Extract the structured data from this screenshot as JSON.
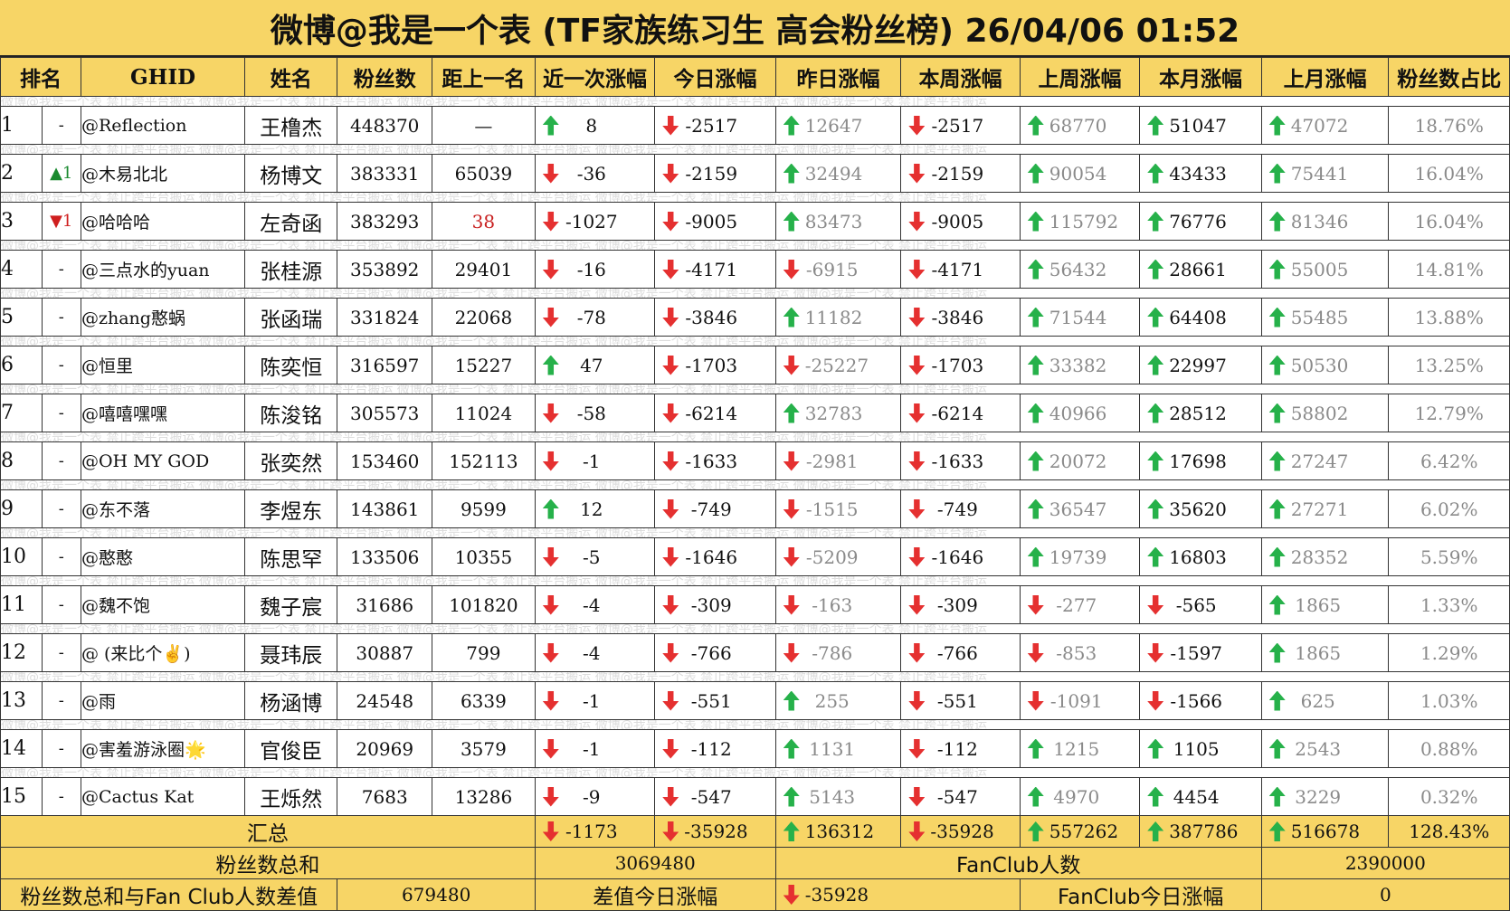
{
  "title": "微博@我是一个表 (TF家族练习生 高会粉丝榜)  26/04/06 01:52",
  "headers": [
    "排名",
    "GHID",
    "姓名",
    "粉丝数",
    "距上一名",
    "近一次涨幅",
    "今日涨幅",
    "昨日涨幅",
    "本周涨幅",
    "上周涨幅",
    "本月涨幅",
    "上月涨幅",
    "粉丝数占比"
  ],
  "watermark": "微博@我是一个表    禁止跨平台搬运    微博@我是一个表    禁止跨平台搬运    微博@我是一个表    禁止跨平台搬运    微博@我是一个表    禁止跨平台搬运    微博@我是一个表    禁止跨平台搬运",
  "colors": {
    "header_bg": "#f7d566",
    "up": "#26b14a",
    "down": "#e53030",
    "gap_highlight": "#c82020"
  },
  "rows": [
    {
      "rank": "1",
      "move": "-",
      "move_dir": "none",
      "ghid": "@Reflection",
      "name": "王橹杰",
      "fans": "448370",
      "gap": "—",
      "last": "8",
      "last_dir": "up",
      "today": "-2517",
      "today_dir": "down",
      "yesterday": "12647",
      "yesterday_dir": "up",
      "week": "-2517",
      "week_dir": "down",
      "lastweek": "68770",
      "lastweek_dir": "up",
      "month": "51047",
      "month_dir": "up",
      "lastmonth": "47072",
      "lastmonth_dir": "up",
      "pct": "18.76%"
    },
    {
      "rank": "2",
      "move": "▲1",
      "move_dir": "up",
      "ghid": "@木易北北",
      "name": "杨博文",
      "fans": "383331",
      "gap": "65039",
      "last": "-36",
      "last_dir": "down",
      "today": "-2159",
      "today_dir": "down",
      "yesterday": "32494",
      "yesterday_dir": "up",
      "week": "-2159",
      "week_dir": "down",
      "lastweek": "90054",
      "lastweek_dir": "up",
      "month": "43433",
      "month_dir": "up",
      "lastmonth": "75441",
      "lastmonth_dir": "up",
      "pct": "16.04%"
    },
    {
      "rank": "3",
      "move": "▼1",
      "move_dir": "down",
      "ghid": "@哈哈哈",
      "name": "左奇函",
      "fans": "383293",
      "gap": "38",
      "gap_red": true,
      "last": "-1027",
      "last_dir": "down",
      "today": "-9005",
      "today_dir": "down",
      "yesterday": "83473",
      "yesterday_dir": "up",
      "week": "-9005",
      "week_dir": "down",
      "lastweek": "115792",
      "lastweek_dir": "up",
      "month": "76776",
      "month_dir": "up",
      "lastmonth": "81346",
      "lastmonth_dir": "up",
      "pct": "16.04%"
    },
    {
      "rank": "4",
      "move": "-",
      "move_dir": "none",
      "ghid": "@三点水的yuan",
      "name": "张桂源",
      "fans": "353892",
      "gap": "29401",
      "last": "-16",
      "last_dir": "down",
      "today": "-4171",
      "today_dir": "down",
      "yesterday": "-6915",
      "yesterday_dir": "down",
      "week": "-4171",
      "week_dir": "down",
      "lastweek": "56432",
      "lastweek_dir": "up",
      "month": "28661",
      "month_dir": "up",
      "lastmonth": "55005",
      "lastmonth_dir": "up",
      "pct": "14.81%"
    },
    {
      "rank": "5",
      "move": "-",
      "move_dir": "none",
      "ghid": "@zhang憨蜗",
      "name": "张函瑞",
      "fans": "331824",
      "gap": "22068",
      "last": "-78",
      "last_dir": "down",
      "today": "-3846",
      "today_dir": "down",
      "yesterday": "11182",
      "yesterday_dir": "up",
      "week": "-3846",
      "week_dir": "down",
      "lastweek": "71544",
      "lastweek_dir": "up",
      "month": "64408",
      "month_dir": "up",
      "lastmonth": "55485",
      "lastmonth_dir": "up",
      "pct": "13.88%"
    },
    {
      "rank": "6",
      "move": "-",
      "move_dir": "none",
      "ghid": "@恒里",
      "name": "陈奕恒",
      "fans": "316597",
      "gap": "15227",
      "last": "47",
      "last_dir": "up",
      "today": "-1703",
      "today_dir": "down",
      "yesterday": "-25227",
      "yesterday_dir": "down",
      "week": "-1703",
      "week_dir": "down",
      "lastweek": "33382",
      "lastweek_dir": "up",
      "month": "22997",
      "month_dir": "up",
      "lastmonth": "50530",
      "lastmonth_dir": "up",
      "pct": "13.25%"
    },
    {
      "rank": "7",
      "move": "-",
      "move_dir": "none",
      "ghid": "@嘻嘻嘿嘿",
      "name": "陈浚铭",
      "fans": "305573",
      "gap": "11024",
      "last": "-58",
      "last_dir": "down",
      "today": "-6214",
      "today_dir": "down",
      "yesterday": "32783",
      "yesterday_dir": "up",
      "week": "-6214",
      "week_dir": "down",
      "lastweek": "40966",
      "lastweek_dir": "up",
      "month": "28512",
      "month_dir": "up",
      "lastmonth": "58802",
      "lastmonth_dir": "up",
      "pct": "12.79%"
    },
    {
      "rank": "8",
      "move": "-",
      "move_dir": "none",
      "ghid": "@OH MY GOD",
      "name": "张奕然",
      "fans": "153460",
      "gap": "152113",
      "last": "-1",
      "last_dir": "down",
      "today": "-1633",
      "today_dir": "down",
      "yesterday": "-2981",
      "yesterday_dir": "down",
      "week": "-1633",
      "week_dir": "down",
      "lastweek": "20072",
      "lastweek_dir": "up",
      "month": "17698",
      "month_dir": "up",
      "lastmonth": "27247",
      "lastmonth_dir": "up",
      "pct": "6.42%"
    },
    {
      "rank": "9",
      "move": "-",
      "move_dir": "none",
      "ghid": "@东不落",
      "name": "李煜东",
      "fans": "143861",
      "gap": "9599",
      "last": "12",
      "last_dir": "up",
      "today": "-749",
      "today_dir": "down",
      "yesterday": "-1515",
      "yesterday_dir": "down",
      "week": "-749",
      "week_dir": "down",
      "lastweek": "36547",
      "lastweek_dir": "up",
      "month": "35620",
      "month_dir": "up",
      "lastmonth": "27271",
      "lastmonth_dir": "up",
      "pct": "6.02%"
    },
    {
      "rank": "10",
      "move": "-",
      "move_dir": "none",
      "ghid": "@憨憨",
      "name": "陈思罕",
      "fans": "133506",
      "gap": "10355",
      "last": "-5",
      "last_dir": "down",
      "today": "-1646",
      "today_dir": "down",
      "yesterday": "-5209",
      "yesterday_dir": "down",
      "week": "-1646",
      "week_dir": "down",
      "lastweek": "19739",
      "lastweek_dir": "up",
      "month": "16803",
      "month_dir": "up",
      "lastmonth": "28352",
      "lastmonth_dir": "up",
      "pct": "5.59%"
    },
    {
      "rank": "11",
      "move": "-",
      "move_dir": "none",
      "ghid": "@魏不饱",
      "name": "魏子宸",
      "fans": "31686",
      "gap": "101820",
      "last": "-4",
      "last_dir": "down",
      "today": "-309",
      "today_dir": "down",
      "yesterday": "-163",
      "yesterday_dir": "down",
      "week": "-309",
      "week_dir": "down",
      "lastweek": "-277",
      "lastweek_dir": "down",
      "month": "-565",
      "month_dir": "down",
      "lastmonth": "1865",
      "lastmonth_dir": "up",
      "pct": "1.33%"
    },
    {
      "rank": "12",
      "move": "-",
      "move_dir": "none",
      "ghid": "@ (来比个✌)",
      "name": "聂玮辰",
      "fans": "30887",
      "gap": "799",
      "last": "-4",
      "last_dir": "down",
      "today": "-766",
      "today_dir": "down",
      "yesterday": "-786",
      "yesterday_dir": "down",
      "week": "-766",
      "week_dir": "down",
      "lastweek": "-853",
      "lastweek_dir": "down",
      "month": "-1597",
      "month_dir": "down",
      "lastmonth": "1865",
      "lastmonth_dir": "up",
      "pct": "1.29%"
    },
    {
      "rank": "13",
      "move": "-",
      "move_dir": "none",
      "ghid": "@雨",
      "name": "杨涵博",
      "fans": "24548",
      "gap": "6339",
      "last": "-1",
      "last_dir": "down",
      "today": "-551",
      "today_dir": "down",
      "yesterday": "255",
      "yesterday_dir": "up",
      "week": "-551",
      "week_dir": "down",
      "lastweek": "-1091",
      "lastweek_dir": "down",
      "month": "-1566",
      "month_dir": "down",
      "lastmonth": "625",
      "lastmonth_dir": "up",
      "pct": "1.03%"
    },
    {
      "rank": "14",
      "move": "-",
      "move_dir": "none",
      "ghid": "@害羞游泳圈🌟",
      "name": "官俊臣",
      "fans": "20969",
      "gap": "3579",
      "last": "-1",
      "last_dir": "down",
      "today": "-112",
      "today_dir": "down",
      "yesterday": "1131",
      "yesterday_dir": "up",
      "week": "-112",
      "week_dir": "down",
      "lastweek": "1215",
      "lastweek_dir": "up",
      "month": "1105",
      "month_dir": "up",
      "lastmonth": "2543",
      "lastmonth_dir": "up",
      "pct": "0.88%"
    },
    {
      "rank": "15",
      "move": "-",
      "move_dir": "none",
      "ghid": "@Cactus Kat",
      "name": "王烁然",
      "fans": "7683",
      "gap": "13286",
      "last": "-9",
      "last_dir": "down",
      "today": "-547",
      "today_dir": "down",
      "yesterday": "5143",
      "yesterday_dir": "up",
      "week": "-547",
      "week_dir": "down",
      "lastweek": "4970",
      "lastweek_dir": "up",
      "month": "4454",
      "month_dir": "up",
      "lastmonth": "3229",
      "lastmonth_dir": "up",
      "pct": "0.32%"
    }
  ],
  "summary": {
    "label": "汇总",
    "last": "-1173",
    "last_dir": "down",
    "today": "-35928",
    "today_dir": "down",
    "yesterday": "136312",
    "yesterday_dir": "up",
    "week": "-35928",
    "week_dir": "down",
    "lastweek": "557262",
    "lastweek_dir": "up",
    "month": "387786",
    "month_dir": "up",
    "lastmonth": "516678",
    "lastmonth_dir": "up",
    "pct": "128.43%"
  },
  "footer1": {
    "total_label": "粉丝数总和",
    "total_value": "3069480",
    "fanclub_label": "FanClub人数",
    "fanclub_value": "2390000"
  },
  "footer2": {
    "diff_label": "粉丝数总和与Fan Club人数差值",
    "diff_value": "679480",
    "diff_today_label": "差值今日涨幅",
    "diff_today_value": "-35928",
    "diff_today_dir": "down",
    "fanclub_today_label": "FanClub今日涨幅",
    "fanclub_today_value": "0"
  }
}
